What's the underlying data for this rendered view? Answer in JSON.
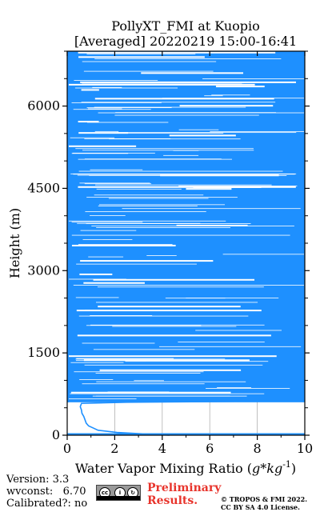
{
  "chart_data": {
    "type": "line",
    "title": "PollyXT_FMI at Kuopio",
    "subtitle": "[Averaged] 20220219 15:00-16:41",
    "xlabel": "Water Vapor Mixing Ratio ($g*kg^{-1}$)",
    "ylabel": "Height (m)",
    "xlim": [
      0,
      10
    ],
    "ylim": [
      0,
      7000
    ],
    "xticks": [
      "0",
      "2",
      "4",
      "6",
      "8",
      "10"
    ],
    "yticks": [
      "0",
      "1500",
      "3000",
      "4500",
      "6000"
    ],
    "grid": true,
    "series_color": "#1e90ff",
    "profile": {
      "x": [
        4.3,
        3.4,
        2.1,
        1.3,
        1.1,
        0.9,
        0.8,
        0.75,
        0.7,
        0.62,
        0.6,
        0.55,
        0.6,
        2.5,
        8.0
      ],
      "y": [
        0,
        20,
        50,
        90,
        130,
        170,
        220,
        280,
        340,
        400,
        460,
        520,
        580,
        600,
        620
      ]
    },
    "dense_region": {
      "y_start": 600,
      "y_end": 7000,
      "x_max": 10
    }
  },
  "footer": {
    "version": "Version: 3.3",
    "wvconst": "wvconst:   6.70",
    "calibrated": "Calibrated?: no",
    "preliminary_line1": "Preliminary",
    "preliminary_line2": "Results.",
    "copyright_line1": "© TROPOS & FMI 2022.",
    "copyright_line2": "CC BY SA 4.0 License."
  },
  "colors": {
    "series": "#1e90ff",
    "preliminary": "#e8342c"
  }
}
